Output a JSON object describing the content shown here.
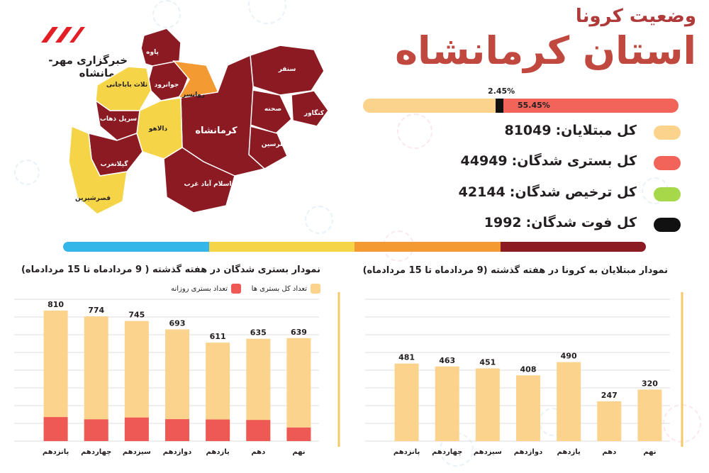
{
  "header": {
    "subtitle": "وضعیت کرونا",
    "title": "استان کرمانشاه",
    "agency": "خبرگزاری مهر- کرمانشاه"
  },
  "map": {
    "counties": [
      {
        "name": "پاوه",
        "color": "#8b1a22"
      },
      {
        "name": "جوانرود",
        "color": "#8b1a22"
      },
      {
        "name": "ثلاث باباجانی",
        "color": "#f5d547"
      },
      {
        "name": "روانسر",
        "color": "#f39a32"
      },
      {
        "name": "سنقر",
        "color": "#8b1a22"
      },
      {
        "name": "صحنه",
        "color": "#8b1a22"
      },
      {
        "name": "کنگاور",
        "color": "#8b1a22"
      },
      {
        "name": "هرسین",
        "color": "#8b1a22"
      },
      {
        "name": "کرمانشاه",
        "color": "#8b1a22"
      },
      {
        "name": "دالاهو",
        "color": "#f5d547"
      },
      {
        "name": "سرپل ذهاب",
        "color": "#8b1a22"
      },
      {
        "name": "گیلانغرب",
        "color": "#8b1a22"
      },
      {
        "name": "اسلام آباد غرب",
        "color": "#8b1a22"
      },
      {
        "name": "قصرشیرین",
        "color": "#f5d547"
      }
    ]
  },
  "ratio_bar": {
    "death_pct_label": "2.45%",
    "hospital_pct_label": "55.45%",
    "death_fraction": 0.0245,
    "hospital_fraction": 0.5545
  },
  "stats": [
    {
      "label": "کل مبتلایان:",
      "value": "81049",
      "color": "#fbd38d"
    },
    {
      "label": "کل بستری شدگان:",
      "value": "44949",
      "color": "#f2645a"
    },
    {
      "label": "کل ترخیص شدگان:",
      "value": "42144",
      "color": "#a6d84a"
    },
    {
      "label": "کل فوت شدگان:",
      "value": "1992",
      "color": "#111111"
    }
  ],
  "stripe_colors": [
    "#35b6e8",
    "#f5d547",
    "#f39a32",
    "#8b1a22"
  ],
  "chart_data": [
    {
      "type": "bar",
      "title": "نمودار بستری شدگان در هفته گذشته ( 9 مردادماه تا 15 مردادماه)",
      "categories": [
        "پانزدهم",
        "چهاردهم",
        "سیزدهم",
        "دوازدهم",
        "یازدهم",
        "دهم",
        "نهم"
      ],
      "series": [
        {
          "name": "تعداد کل بستری ها",
          "values": [
            810,
            774,
            745,
            693,
            611,
            635,
            639
          ],
          "color": "#fbd38d"
        },
        {
          "name": "تعداد بستری روزانه",
          "values": [
            149,
            135,
            146,
            136,
            134,
            131,
            84
          ],
          "color": "#ee5855"
        }
      ],
      "ylim": [
        0,
        880
      ],
      "grid": true,
      "legend": "top-right"
    },
    {
      "type": "bar",
      "title": "نمودار مبتلایان به کرونا در هفته گذشته (9 مردادماه تا 15 مردادماه)",
      "categories": [
        "پانزدهم",
        "چهاردهم",
        "سیزدهم",
        "دوازدهم",
        "یازدهم",
        "دهم",
        "نهم"
      ],
      "series": [
        {
          "values": [
            481,
            463,
            451,
            408,
            490,
            247,
            320
          ],
          "color": "#fbd38d"
        }
      ],
      "ylim": [
        0,
        880
      ],
      "grid": true
    }
  ]
}
